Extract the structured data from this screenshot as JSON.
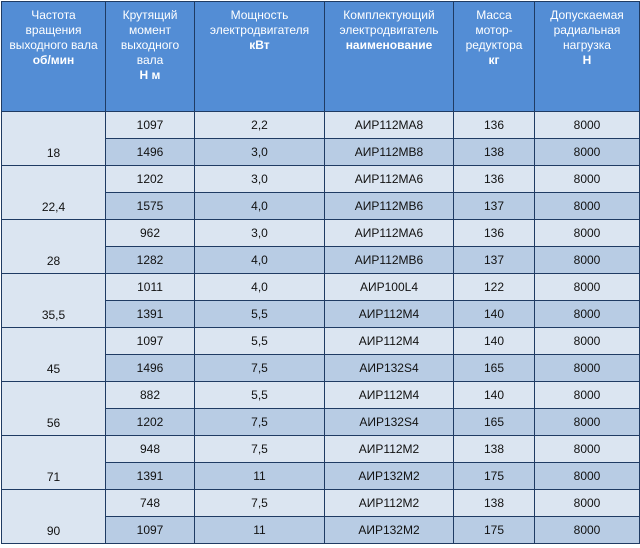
{
  "headers": [
    {
      "text": "Частота вращения выходного вала",
      "unit": "об/мин"
    },
    {
      "text": "Крутящий момент выходного вала",
      "unit": "Н м"
    },
    {
      "text": "Мощность электродвигателя",
      "unit": "кВт"
    },
    {
      "text": "Комплектующий электродвигатель",
      "unit": "наименование"
    },
    {
      "text": "Масса мотор-редуктора",
      "unit": "кг"
    },
    {
      "text": "Допускаемая радиальная нагрузка",
      "unit": "Н"
    }
  ],
  "groups": [
    {
      "speed": "18",
      "rows": [
        {
          "torque": "1097",
          "power": "2,2",
          "motor": "АИР112МА8",
          "mass": "136",
          "load": "8000"
        },
        {
          "torque": "1496",
          "power": "3,0",
          "motor": "АИР112МВ8",
          "mass": "138",
          "load": "8000"
        }
      ]
    },
    {
      "speed": "22,4",
      "rows": [
        {
          "torque": "1202",
          "power": "3,0",
          "motor": "АИР112МА6",
          "mass": "136",
          "load": "8000"
        },
        {
          "torque": "1575",
          "power": "4,0",
          "motor": "АИР112МВ6",
          "mass": "137",
          "load": "8000"
        }
      ]
    },
    {
      "speed": "28",
      "rows": [
        {
          "torque": "962",
          "power": "3,0",
          "motor": "АИР112МА6",
          "mass": "136",
          "load": "8000"
        },
        {
          "torque": "1282",
          "power": "4,0",
          "motor": "АИР112МВ6",
          "mass": "137",
          "load": "8000"
        }
      ]
    },
    {
      "speed": "35,5",
      "rows": [
        {
          "torque": "1011",
          "power": "4,0",
          "motor": "АИР100L4",
          "mass": "122",
          "load": "8000"
        },
        {
          "torque": "1391",
          "power": "5,5",
          "motor": "АИР112М4",
          "mass": "140",
          "load": "8000"
        }
      ]
    },
    {
      "speed": "45",
      "rows": [
        {
          "torque": "1097",
          "power": "5,5",
          "motor": "АИР112М4",
          "mass": "140",
          "load": "8000"
        },
        {
          "torque": "1496",
          "power": "7,5",
          "motor": "АИР132S4",
          "mass": "165",
          "load": "8000"
        }
      ]
    },
    {
      "speed": "56",
      "rows": [
        {
          "torque": "882",
          "power": "5,5",
          "motor": "АИР112М4",
          "mass": "140",
          "load": "8000"
        },
        {
          "torque": "1202",
          "power": "7,5",
          "motor": "АИР132S4",
          "mass": "165",
          "load": "8000"
        }
      ]
    },
    {
      "speed": "71",
      "rows": [
        {
          "torque": "948",
          "power": "7,5",
          "motor": "АИР112М2",
          "mass": "138",
          "load": "8000"
        },
        {
          "torque": "1391",
          "power": "11",
          "motor": "АИР132М2",
          "mass": "175",
          "load": "8000"
        }
      ]
    },
    {
      "speed": "90",
      "rows": [
        {
          "torque": "748",
          "power": "7,5",
          "motor": "АИР112М2",
          "mass": "138",
          "load": "8000"
        },
        {
          "torque": "1097",
          "power": "11",
          "motor": "АИР132М2",
          "mass": "175",
          "load": "8000"
        }
      ]
    }
  ]
}
